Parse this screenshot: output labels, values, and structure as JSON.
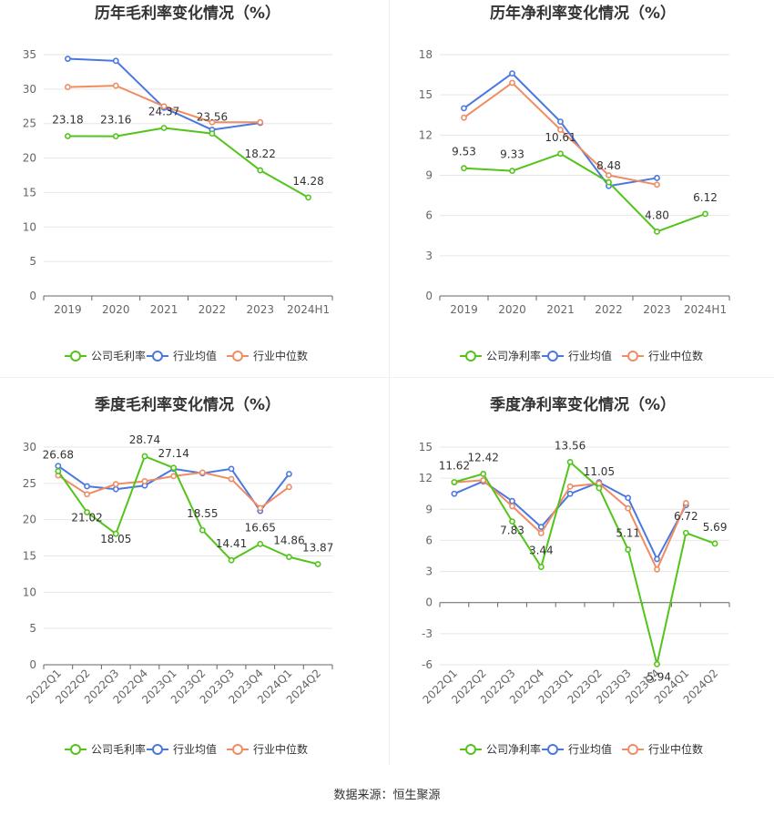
{
  "colors": {
    "company": "#52c41a",
    "industry_avg": "#4a78e0",
    "industry_median": "#f08c64"
  },
  "source": "数据来源：恒生聚源",
  "chart_data": [
    {
      "type": "line",
      "title": "历年毛利率变化情况（%）",
      "categories": [
        "2019",
        "2020",
        "2021",
        "2022",
        "2023",
        "2024H1"
      ],
      "ylim": [
        0,
        35
      ],
      "yticks": [
        0,
        5,
        10,
        15,
        20,
        25,
        30,
        35
      ],
      "ytick_labels": [
        "0",
        "5",
        "10",
        "15",
        "20",
        "25",
        "30",
        "35"
      ],
      "grid": true,
      "legend": "bottom",
      "series": [
        {
          "name": "公司毛利率",
          "key": "company",
          "values": [
            23.18,
            23.16,
            24.37,
            23.56,
            18.22,
            14.28
          ],
          "labels": [
            "23.18",
            "23.16",
            "24.37",
            "23.56",
            "18.22",
            "14.28"
          ]
        },
        {
          "name": "行业均值",
          "key": "industry_avg",
          "values": [
            34.4,
            34.1,
            27.3,
            24.1,
            25.1,
            null
          ]
        },
        {
          "name": "行业中位数",
          "key": "industry_median",
          "values": [
            30.3,
            30.5,
            27.5,
            25.2,
            25.2,
            null
          ]
        }
      ]
    },
    {
      "type": "line",
      "title": "历年净利率变化情况（%）",
      "categories": [
        "2019",
        "2020",
        "2021",
        "2022",
        "2023",
        "2024H1"
      ],
      "ylim": [
        0,
        18
      ],
      "yticks": [
        0,
        3,
        6,
        9,
        12,
        15,
        18
      ],
      "ytick_labels": [
        "0",
        "3",
        "6",
        "9",
        "12",
        "15",
        "18"
      ],
      "grid": true,
      "legend": "bottom",
      "series": [
        {
          "name": "公司净利率",
          "key": "company",
          "values": [
            9.53,
            9.33,
            10.61,
            8.48,
            4.8,
            6.12
          ],
          "labels": [
            "9.53",
            "9.33",
            "10.61",
            "8.48",
            "4.80",
            "6.12"
          ]
        },
        {
          "name": "行业均值",
          "key": "industry_avg",
          "values": [
            14.0,
            16.6,
            13.0,
            8.2,
            8.8,
            null
          ]
        },
        {
          "name": "行业中位数",
          "key": "industry_median",
          "values": [
            13.3,
            15.9,
            12.4,
            9.0,
            8.3,
            null
          ]
        }
      ]
    },
    {
      "type": "line",
      "title": "季度毛利率变化情况（%）",
      "categories": [
        "2022Q1",
        "2022Q2",
        "2022Q3",
        "2022Q4",
        "2023Q1",
        "2023Q2",
        "2023Q3",
        "2023Q4",
        "2024Q1",
        "2024Q2"
      ],
      "ylim": [
        0,
        30
      ],
      "yticks": [
        0,
        5,
        10,
        15,
        20,
        25,
        30
      ],
      "ytick_labels": [
        "0",
        "5",
        "10",
        "15",
        "20",
        "25",
        "30"
      ],
      "grid": true,
      "legend": "bottom",
      "series": [
        {
          "name": "公司毛利率",
          "key": "company",
          "values": [
            26.68,
            21.02,
            18.05,
            28.74,
            27.14,
            18.55,
            14.41,
            16.65,
            14.86,
            13.87
          ],
          "labels": [
            "26.68",
            "21.02",
            "18.05",
            "28.74",
            "27.14",
            "18.55",
            "14.41",
            "16.65",
            "14.86",
            "13.87"
          ]
        },
        {
          "name": "行业均值",
          "key": "industry_avg",
          "values": [
            27.4,
            24.6,
            24.2,
            24.7,
            27.0,
            26.4,
            27.0,
            21.2,
            26.3,
            null
          ]
        },
        {
          "name": "行业中位数",
          "key": "industry_median",
          "values": [
            26.1,
            23.5,
            24.9,
            25.3,
            26.0,
            26.5,
            25.6,
            21.6,
            24.5,
            null
          ]
        }
      ]
    },
    {
      "type": "line",
      "title": "季度净利率变化情况（%）",
      "categories": [
        "2022Q1",
        "2022Q2",
        "2022Q3",
        "2022Q4",
        "2023Q1",
        "2023Q2",
        "2023Q3",
        "2023Q4",
        "2024Q1",
        "2024Q2"
      ],
      "ylim": [
        -6,
        15
      ],
      "yticks": [
        -6,
        -3,
        0,
        3,
        6,
        9,
        12,
        15
      ],
      "ytick_labels": [
        "-6",
        "-3",
        "0",
        "3",
        "6",
        "9",
        "12",
        "15"
      ],
      "grid": true,
      "legend": "bottom",
      "series": [
        {
          "name": "公司净利率",
          "key": "company",
          "values": [
            11.62,
            12.42,
            7.83,
            3.44,
            13.56,
            11.05,
            5.11,
            -5.94,
            6.72,
            5.69
          ],
          "labels": [
            "11.62",
            "12.42",
            "7.83",
            "3.44",
            "13.56",
            "11.05",
            "5.11",
            "-5.94",
            "6.72",
            "5.69"
          ]
        },
        {
          "name": "行业均值",
          "key": "industry_avg",
          "values": [
            10.5,
            11.7,
            9.8,
            7.3,
            10.5,
            11.6,
            10.1,
            4.2,
            9.4,
            null
          ]
        },
        {
          "name": "行业中位数",
          "key": "industry_median",
          "values": [
            11.6,
            11.8,
            9.3,
            6.7,
            11.2,
            11.5,
            9.1,
            3.2,
            9.6,
            null
          ]
        }
      ]
    }
  ]
}
